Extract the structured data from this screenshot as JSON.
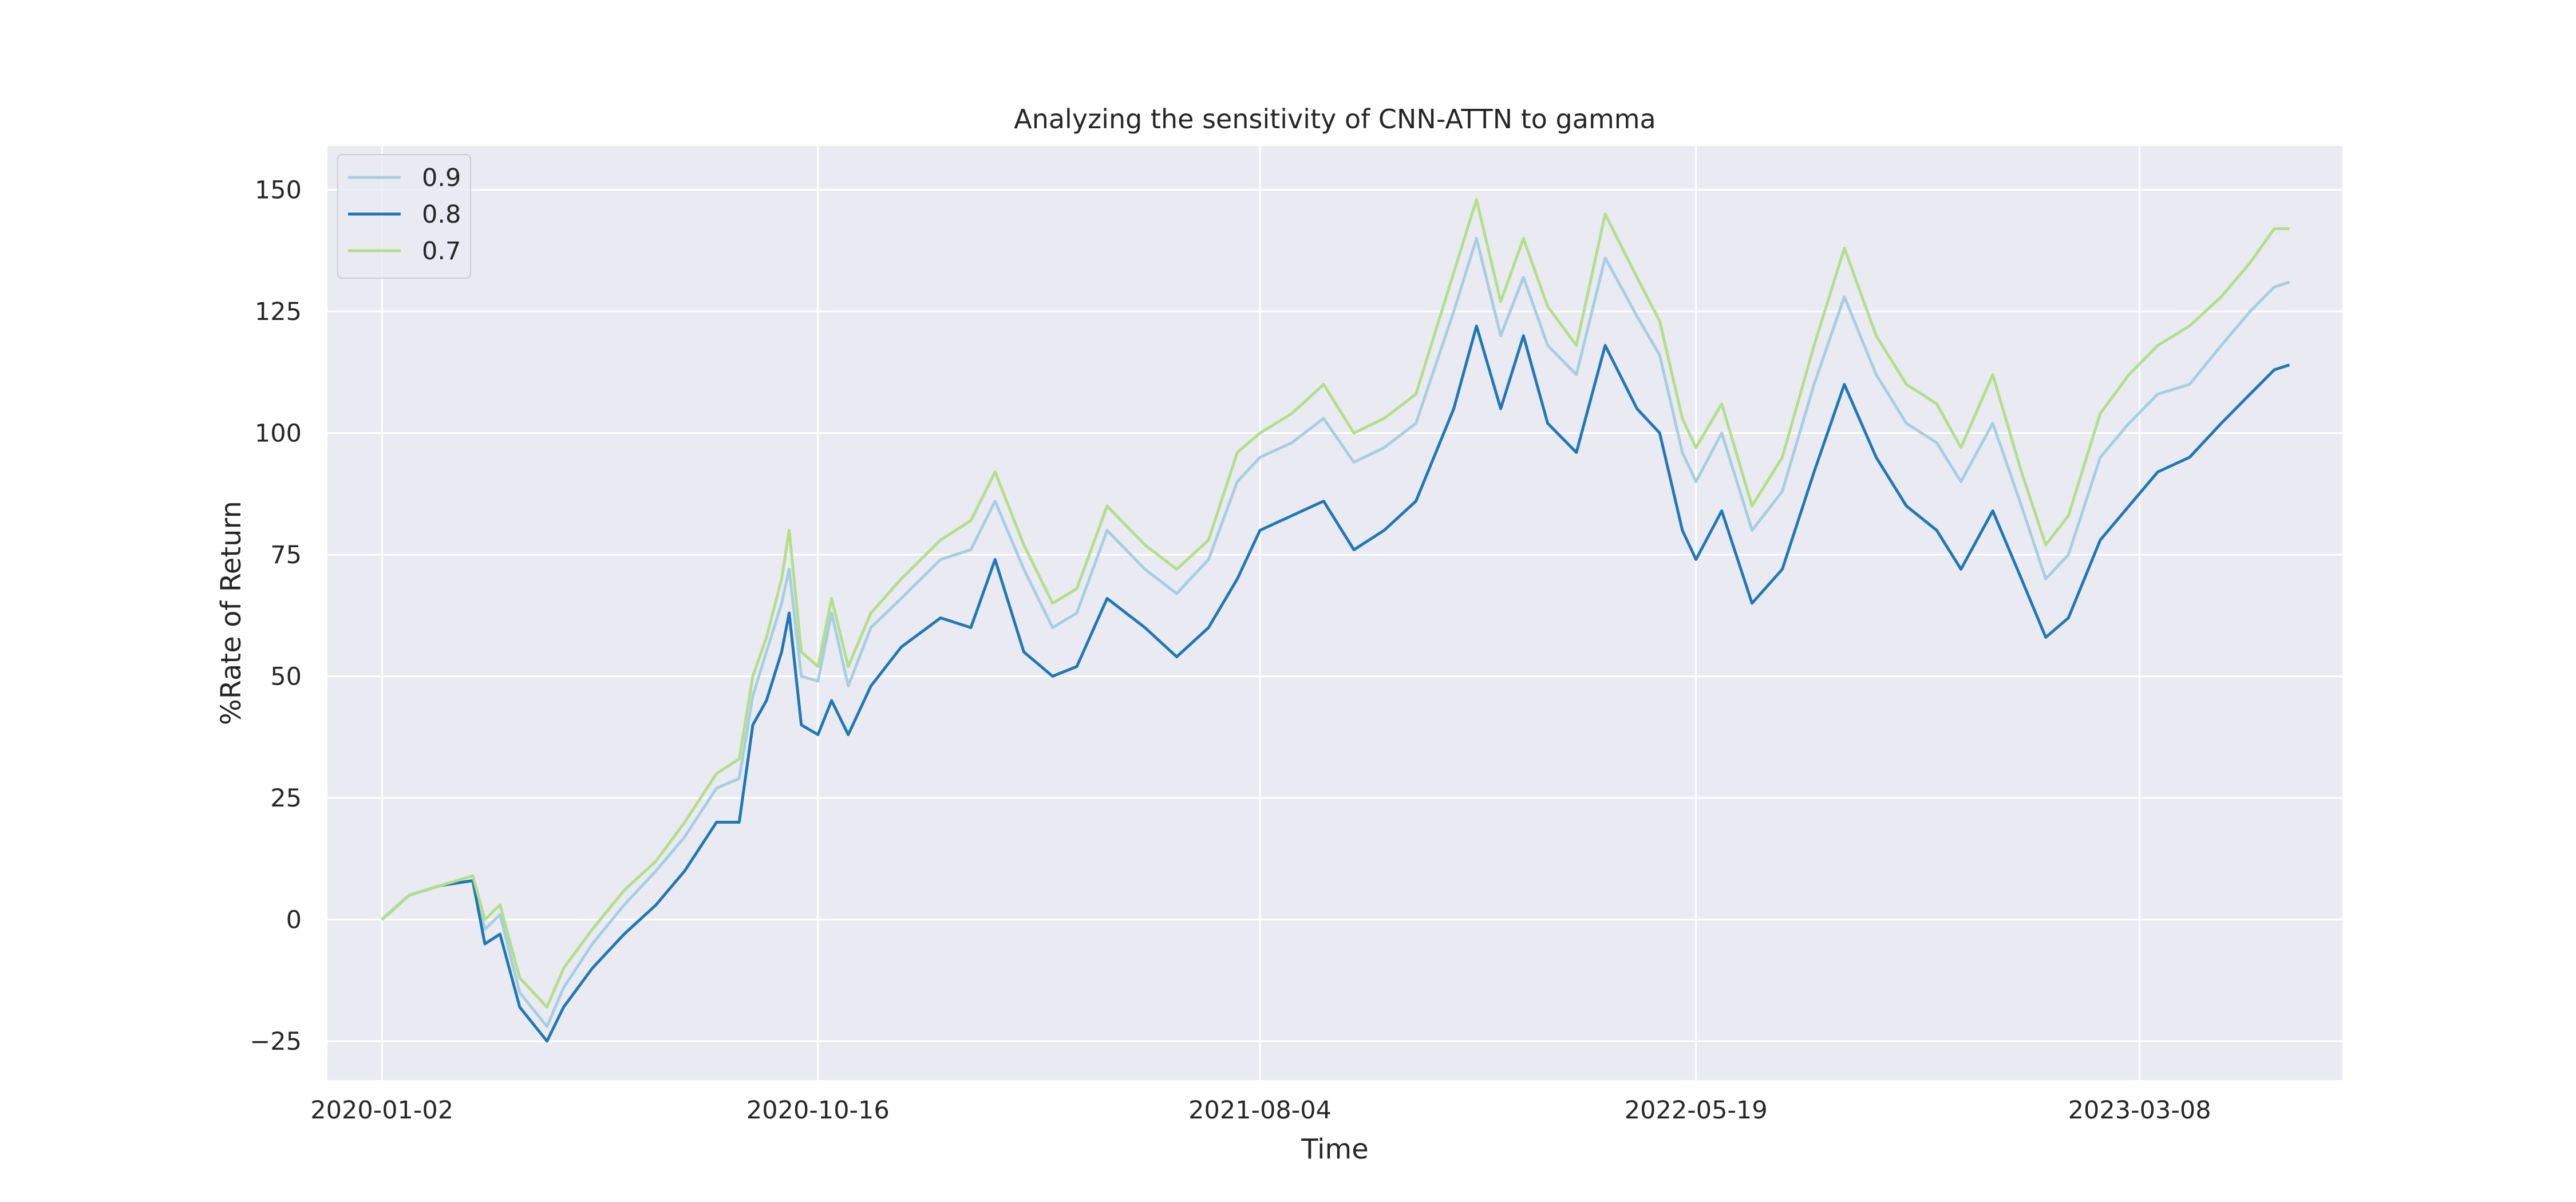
{
  "chart_data": {
    "type": "line",
    "title": "Analyzing the sensitivity of CNN-ATTN to gamma",
    "xlabel": "Time",
    "ylabel": "%Rate of Return",
    "x_range": [
      "2019-11-27",
      "2023-07-20"
    ],
    "ylim": [
      -33,
      159
    ],
    "x_ticks": [
      {
        "date": "2020-01-02",
        "label": "2020-01-02"
      },
      {
        "date": "2020-10-16",
        "label": "2020-10-16"
      },
      {
        "date": "2021-08-04",
        "label": "2021-08-04"
      },
      {
        "date": "2022-05-19",
        "label": "2022-05-19"
      },
      {
        "date": "2023-03-08",
        "label": "2023-03-08"
      }
    ],
    "y_ticks": [
      {
        "value": 150,
        "label": "150"
      },
      {
        "value": 125,
        "label": "125"
      },
      {
        "value": 100,
        "label": "100"
      },
      {
        "value": 75,
        "label": "75"
      },
      {
        "value": 50,
        "label": "50"
      },
      {
        "value": 25,
        "label": "25"
      },
      {
        "value": 0,
        "label": "0"
      },
      {
        "value": -25,
        "label": "−25"
      }
    ],
    "grid": true,
    "background_color": "#eaeaf2",
    "legend_position": "top-left",
    "series": [
      {
        "name": "0.9",
        "color": "#a6cee3",
        "points": [
          [
            "2020-01-02",
            0
          ],
          [
            "2020-01-20",
            5
          ],
          [
            "2020-02-10",
            7
          ],
          [
            "2020-03-02",
            8
          ],
          [
            "2020-03-10",
            -2
          ],
          [
            "2020-03-20",
            1
          ],
          [
            "2020-04-02",
            -15
          ],
          [
            "2020-04-20",
            -22
          ],
          [
            "2020-05-01",
            -14
          ],
          [
            "2020-05-20",
            -5
          ],
          [
            "2020-06-10",
            3
          ],
          [
            "2020-07-01",
            10
          ],
          [
            "2020-07-20",
            17
          ],
          [
            "2020-08-10",
            27
          ],
          [
            "2020-08-25",
            29
          ],
          [
            "2020-09-03",
            46
          ],
          [
            "2020-09-12",
            55
          ],
          [
            "2020-09-22",
            65
          ],
          [
            "2020-09-27",
            72
          ],
          [
            "2020-10-05",
            50
          ],
          [
            "2020-10-16",
            49
          ],
          [
            "2020-10-25",
            63
          ],
          [
            "2020-11-05",
            48
          ],
          [
            "2020-11-20",
            60
          ],
          [
            "2020-12-10",
            66
          ],
          [
            "2021-01-05",
            74
          ],
          [
            "2021-01-25",
            76
          ],
          [
            "2021-02-10",
            86
          ],
          [
            "2021-03-01",
            72
          ],
          [
            "2021-03-20",
            60
          ],
          [
            "2021-04-05",
            63
          ],
          [
            "2021-04-25",
            80
          ],
          [
            "2021-05-20",
            72
          ],
          [
            "2021-06-10",
            67
          ],
          [
            "2021-07-01",
            74
          ],
          [
            "2021-07-20",
            90
          ],
          [
            "2021-08-04",
            95
          ],
          [
            "2021-08-25",
            98
          ],
          [
            "2021-09-15",
            103
          ],
          [
            "2021-10-05",
            94
          ],
          [
            "2021-10-25",
            97
          ],
          [
            "2021-11-15",
            102
          ],
          [
            "2021-12-10",
            125
          ],
          [
            "2021-12-25",
            140
          ],
          [
            "2022-01-10",
            120
          ],
          [
            "2022-01-25",
            132
          ],
          [
            "2022-02-10",
            118
          ],
          [
            "2022-03-01",
            112
          ],
          [
            "2022-03-20",
            136
          ],
          [
            "2022-04-10",
            124
          ],
          [
            "2022-04-25",
            116
          ],
          [
            "2022-05-10",
            96
          ],
          [
            "2022-05-19",
            90
          ],
          [
            "2022-06-05",
            100
          ],
          [
            "2022-06-25",
            80
          ],
          [
            "2022-07-15",
            88
          ],
          [
            "2022-08-05",
            110
          ],
          [
            "2022-08-25",
            128
          ],
          [
            "2022-09-15",
            112
          ],
          [
            "2022-10-05",
            102
          ],
          [
            "2022-10-25",
            98
          ],
          [
            "2022-11-10",
            90
          ],
          [
            "2022-12-01",
            102
          ],
          [
            "2022-12-20",
            85
          ],
          [
            "2023-01-05",
            70
          ],
          [
            "2023-01-20",
            75
          ],
          [
            "2023-02-10",
            95
          ],
          [
            "2023-03-01",
            102
          ],
          [
            "2023-03-20",
            108
          ],
          [
            "2023-04-10",
            110
          ],
          [
            "2023-05-01",
            118
          ],
          [
            "2023-05-20",
            125
          ],
          [
            "2023-06-05",
            130
          ],
          [
            "2023-06-15",
            131
          ]
        ]
      },
      {
        "name": "0.8",
        "color": "#1f78b4",
        "points": [
          [
            "2020-01-02",
            0
          ],
          [
            "2020-01-20",
            5
          ],
          [
            "2020-02-10",
            7
          ],
          [
            "2020-03-02",
            8
          ],
          [
            "2020-03-10",
            -5
          ],
          [
            "2020-03-20",
            -3
          ],
          [
            "2020-04-02",
            -18
          ],
          [
            "2020-04-20",
            -25
          ],
          [
            "2020-05-01",
            -18
          ],
          [
            "2020-05-20",
            -10
          ],
          [
            "2020-06-10",
            -3
          ],
          [
            "2020-07-01",
            3
          ],
          [
            "2020-07-20",
            10
          ],
          [
            "2020-08-10",
            20
          ],
          [
            "2020-08-25",
            20
          ],
          [
            "2020-09-03",
            40
          ],
          [
            "2020-09-12",
            45
          ],
          [
            "2020-09-22",
            55
          ],
          [
            "2020-09-27",
            63
          ],
          [
            "2020-10-05",
            40
          ],
          [
            "2020-10-16",
            38
          ],
          [
            "2020-10-25",
            45
          ],
          [
            "2020-11-05",
            38
          ],
          [
            "2020-11-20",
            48
          ],
          [
            "2020-12-10",
            56
          ],
          [
            "2021-01-05",
            62
          ],
          [
            "2021-01-25",
            60
          ],
          [
            "2021-02-10",
            74
          ],
          [
            "2021-03-01",
            55
          ],
          [
            "2021-03-20",
            50
          ],
          [
            "2021-04-05",
            52
          ],
          [
            "2021-04-25",
            66
          ],
          [
            "2021-05-20",
            60
          ],
          [
            "2021-06-10",
            54
          ],
          [
            "2021-07-01",
            60
          ],
          [
            "2021-07-20",
            70
          ],
          [
            "2021-08-04",
            80
          ],
          [
            "2021-08-25",
            83
          ],
          [
            "2021-09-15",
            86
          ],
          [
            "2021-10-05",
            76
          ],
          [
            "2021-10-25",
            80
          ],
          [
            "2021-11-15",
            86
          ],
          [
            "2021-12-10",
            105
          ],
          [
            "2021-12-25",
            122
          ],
          [
            "2022-01-10",
            105
          ],
          [
            "2022-01-25",
            120
          ],
          [
            "2022-02-10",
            102
          ],
          [
            "2022-03-01",
            96
          ],
          [
            "2022-03-20",
            118
          ],
          [
            "2022-04-10",
            105
          ],
          [
            "2022-04-25",
            100
          ],
          [
            "2022-05-10",
            80
          ],
          [
            "2022-05-19",
            74
          ],
          [
            "2022-06-05",
            84
          ],
          [
            "2022-06-25",
            65
          ],
          [
            "2022-07-15",
            72
          ],
          [
            "2022-08-05",
            92
          ],
          [
            "2022-08-25",
            110
          ],
          [
            "2022-09-15",
            95
          ],
          [
            "2022-10-05",
            85
          ],
          [
            "2022-10-25",
            80
          ],
          [
            "2022-11-10",
            72
          ],
          [
            "2022-12-01",
            84
          ],
          [
            "2022-12-20",
            70
          ],
          [
            "2023-01-05",
            58
          ],
          [
            "2023-01-20",
            62
          ],
          [
            "2023-02-10",
            78
          ],
          [
            "2023-03-01",
            85
          ],
          [
            "2023-03-20",
            92
          ],
          [
            "2023-04-10",
            95
          ],
          [
            "2023-05-01",
            102
          ],
          [
            "2023-05-20",
            108
          ],
          [
            "2023-06-05",
            113
          ],
          [
            "2023-06-15",
            114
          ]
        ]
      },
      {
        "name": "0.7",
        "color": "#b2df8a",
        "points": [
          [
            "2020-01-02",
            0
          ],
          [
            "2020-01-20",
            5
          ],
          [
            "2020-02-10",
            7
          ],
          [
            "2020-03-02",
            9
          ],
          [
            "2020-03-10",
            0
          ],
          [
            "2020-03-20",
            3
          ],
          [
            "2020-04-02",
            -12
          ],
          [
            "2020-04-20",
            -18
          ],
          [
            "2020-05-01",
            -10
          ],
          [
            "2020-05-20",
            -2
          ],
          [
            "2020-06-10",
            6
          ],
          [
            "2020-07-01",
            12
          ],
          [
            "2020-07-20",
            20
          ],
          [
            "2020-08-10",
            30
          ],
          [
            "2020-08-25",
            33
          ],
          [
            "2020-09-03",
            50
          ],
          [
            "2020-09-12",
            58
          ],
          [
            "2020-09-22",
            70
          ],
          [
            "2020-09-27",
            80
          ],
          [
            "2020-10-05",
            55
          ],
          [
            "2020-10-16",
            52
          ],
          [
            "2020-10-25",
            66
          ],
          [
            "2020-11-05",
            52
          ],
          [
            "2020-11-20",
            63
          ],
          [
            "2020-12-10",
            70
          ],
          [
            "2021-01-05",
            78
          ],
          [
            "2021-01-25",
            82
          ],
          [
            "2021-02-10",
            92
          ],
          [
            "2021-03-01",
            77
          ],
          [
            "2021-03-20",
            65
          ],
          [
            "2021-04-05",
            68
          ],
          [
            "2021-04-25",
            85
          ],
          [
            "2021-05-20",
            77
          ],
          [
            "2021-06-10",
            72
          ],
          [
            "2021-07-01",
            78
          ],
          [
            "2021-07-20",
            96
          ],
          [
            "2021-08-04",
            100
          ],
          [
            "2021-08-25",
            104
          ],
          [
            "2021-09-15",
            110
          ],
          [
            "2021-10-05",
            100
          ],
          [
            "2021-10-25",
            103
          ],
          [
            "2021-11-15",
            108
          ],
          [
            "2021-12-10",
            133
          ],
          [
            "2021-12-25",
            148
          ],
          [
            "2022-01-10",
            127
          ],
          [
            "2022-01-25",
            140
          ],
          [
            "2022-02-10",
            126
          ],
          [
            "2022-03-01",
            118
          ],
          [
            "2022-03-20",
            145
          ],
          [
            "2022-04-10",
            132
          ],
          [
            "2022-04-25",
            123
          ],
          [
            "2022-05-10",
            103
          ],
          [
            "2022-05-19",
            97
          ],
          [
            "2022-06-05",
            106
          ],
          [
            "2022-06-25",
            85
          ],
          [
            "2022-07-15",
            95
          ],
          [
            "2022-08-05",
            118
          ],
          [
            "2022-08-25",
            138
          ],
          [
            "2022-09-15",
            120
          ],
          [
            "2022-10-05",
            110
          ],
          [
            "2022-10-25",
            106
          ],
          [
            "2022-11-10",
            97
          ],
          [
            "2022-12-01",
            112
          ],
          [
            "2022-12-20",
            92
          ],
          [
            "2023-01-05",
            77
          ],
          [
            "2023-01-20",
            83
          ],
          [
            "2023-02-10",
            104
          ],
          [
            "2023-03-01",
            112
          ],
          [
            "2023-03-20",
            118
          ],
          [
            "2023-04-10",
            122
          ],
          [
            "2023-05-01",
            128
          ],
          [
            "2023-05-20",
            135
          ],
          [
            "2023-06-05",
            142
          ],
          [
            "2023-06-15",
            142
          ]
        ]
      }
    ]
  }
}
